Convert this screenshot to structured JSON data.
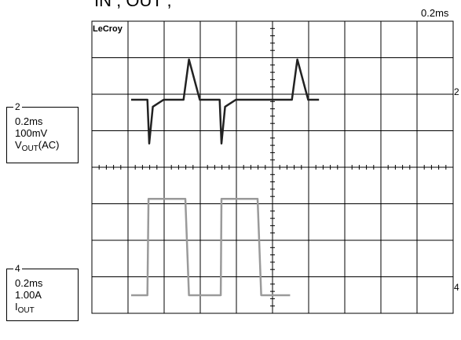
{
  "header": {
    "cut_title_visible": "IN , OUT ,",
    "timebase": "0.2ms"
  },
  "scope": {
    "brand": "LeCroy",
    "grid": {
      "divisions_x": 10,
      "divisions_y": 8
    },
    "colors": {
      "trace_ch2": "#222222",
      "trace_ch4": "#9a9a9a",
      "grid": "#000000",
      "background": "#ffffff"
    }
  },
  "channel2": {
    "number": "2",
    "time_per_div": "0.2ms",
    "volts_per_div": "100mV",
    "label_main": "V",
    "label_sub": "OUT",
    "label_suffix": "(AC)",
    "marker_right": "2"
  },
  "channel4": {
    "number": "4",
    "time_per_div": "0.2ms",
    "amps_per_div": "1.00A",
    "label_main": "I",
    "label_sub": "OUT",
    "marker_right": "4"
  },
  "chart_data": [
    {
      "type": "line",
      "series": [
        {
          "name": "VOUT(AC)",
          "x": [
            0.0,
            0.2,
            0.45,
            0.5,
            0.6,
            0.9,
            1.45,
            1.6,
            1.9,
            2.2,
            2.45,
            2.5,
            2.6,
            2.9,
            3.45,
            3.5,
            3.6,
            3.9,
            4.45,
            4.6,
            4.9,
            5.2
          ],
          "values": [
            0.0,
            0.0,
            0.0,
            -0.5,
            -0.08,
            0.0,
            0.0,
            0.46,
            0.0,
            0.0,
            0.0,
            -0.5,
            -0.08,
            0.0,
            0.0,
            0.0,
            0.0,
            0.0,
            0.0,
            0.46,
            0.0,
            0.0
          ]
        },
        {
          "name": "IOUT",
          "x": [
            0.0,
            0.45,
            0.48,
            1.5,
            1.6,
            2.4,
            2.48,
            2.5,
            3.5,
            3.6,
            4.4
          ],
          "values": [
            0.0,
            0.0,
            1.1,
            1.1,
            0.0,
            0.0,
            0.0,
            1.1,
            1.1,
            0.0,
            0.0
          ]
        }
      ],
      "xlabel": "",
      "ylabel": "",
      "grid": true
    }
  ]
}
